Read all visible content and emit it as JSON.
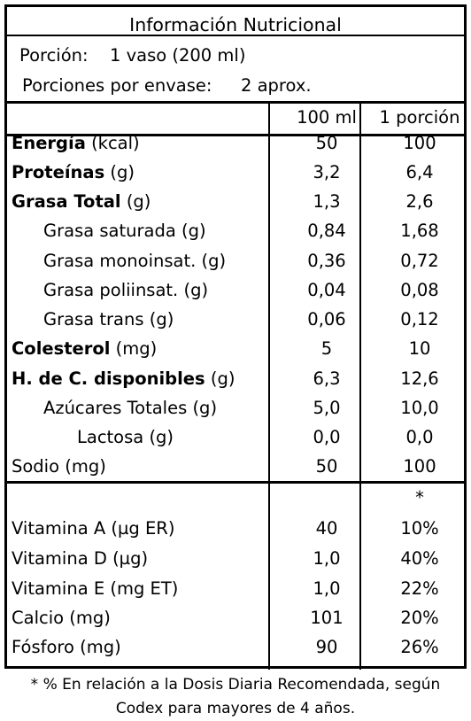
{
  "title": "Información Nutricional",
  "serving": {
    "portion_label": "Porción:",
    "portion_value": "1 vaso (200 ml)",
    "per_container_label": "Porciones por envase:",
    "per_container_value": "2 aprox."
  },
  "columns": {
    "per100": "100 ml",
    "per_portion": "1 porción"
  },
  "nutrients": [
    {
      "name": "Energía",
      "unit": "(kcal)",
      "v100": "50",
      "vportion": "100"
    },
    {
      "name": "Proteínas",
      "unit": "(g)",
      "v100": "3,2",
      "vportion": "6,4"
    },
    {
      "name": "Grasa Total",
      "unit": "(g)",
      "v100": "1,3",
      "vportion": "2,6"
    },
    {
      "name": "Grasa saturada",
      "unit": "(g)",
      "v100": "0,84",
      "vportion": "1,68"
    },
    {
      "name": "Grasa monoinsat.",
      "unit": "(g)",
      "v100": "0,36",
      "vportion": "0,72"
    },
    {
      "name": "Grasa poliinsat.",
      "unit": "(g)",
      "v100": "0,04",
      "vportion": "0,08"
    },
    {
      "name": "Grasa trans",
      "unit": "(g)",
      "v100": "0,06",
      "vportion": "0,12"
    },
    {
      "name": "Colesterol",
      "unit": "(mg)",
      "v100": "5",
      "vportion": "10"
    },
    {
      "name": "H. de C. disponibles",
      "unit": "(g)",
      "v100": "6,3",
      "vportion": "12,6"
    },
    {
      "name": "Azúcares Totales",
      "unit": "(g)",
      "v100": "5,0",
      "vportion": "10,0"
    },
    {
      "name": "Lactosa",
      "unit": "(g)",
      "v100": "0,0",
      "vportion": "0,0"
    },
    {
      "name": "Sodio",
      "unit": "(mg)",
      "v100": "50",
      "vportion": "100"
    }
  ],
  "asterisk": "*",
  "vitamins": [
    {
      "name": "Vitamina A",
      "unit": "(µg ER)",
      "v100": "40",
      "vportion": "10%"
    },
    {
      "name": "Vitamina D",
      "unit": "(µg)",
      "v100": "1,0",
      "vportion": "40%"
    },
    {
      "name": "Vitamina E",
      "unit": "(mg ET)",
      "v100": "1,0",
      "vportion": "22%"
    },
    {
      "name": "Calcio",
      "unit": "(mg)",
      "v100": "101",
      "vportion": "20%"
    },
    {
      "name": "Fósforo",
      "unit": "(mg)",
      "v100": "90",
      "vportion": "26%"
    }
  ],
  "footnote": {
    "line1": "* % En relación a la Dosis Diaria Recomendada, según",
    "line2": "Codex para mayores de 4 años."
  }
}
